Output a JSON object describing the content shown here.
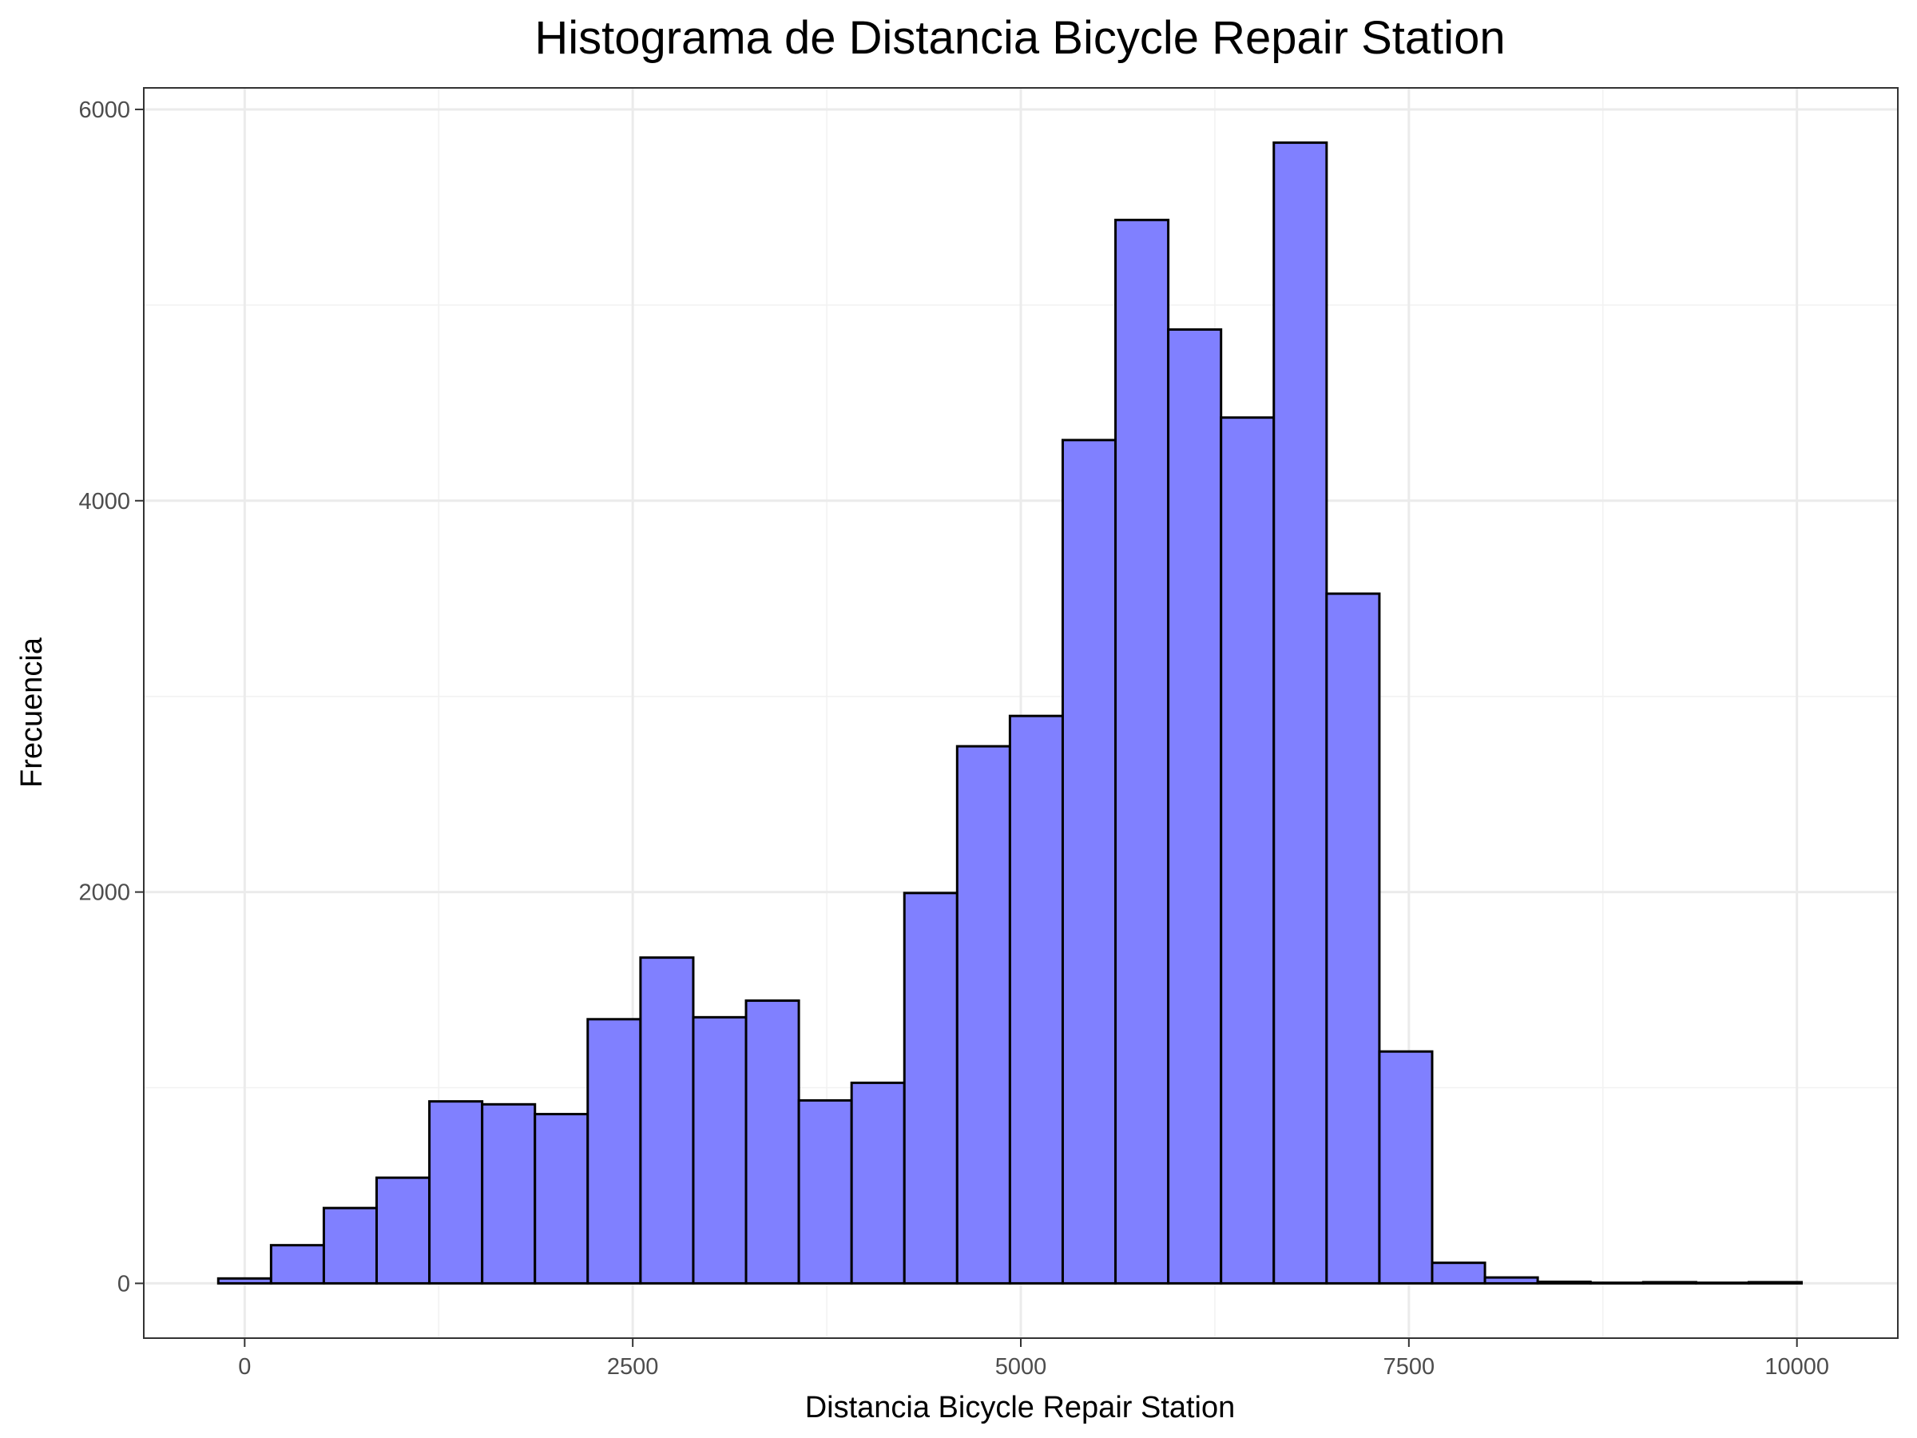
{
  "chart_data": {
    "type": "bar",
    "title": "Histograma de Distancia Bicycle Repair Station",
    "xlabel": "Distancia Bicycle Repair Station",
    "ylabel": "Frecuencia",
    "xlim": [
      -650,
      10650
    ],
    "ylim": [
      -280,
      6110
    ],
    "x_ticks": [
      0,
      2500,
      5000,
      7500,
      10000
    ],
    "x_tick_labels": [
      "0",
      "2500",
      "5000",
      "7500",
      "10000"
    ],
    "y_ticks": [
      0,
      2000,
      4000,
      6000
    ],
    "y_tick_labels": [
      "0",
      "2000",
      "4000",
      "6000"
    ],
    "grid": true,
    "bin_width": 340,
    "bin_starts": [
      -170,
      170,
      510,
      850,
      1190,
      1530,
      1870,
      2210,
      2550,
      2890,
      3230,
      3570,
      3910,
      4250,
      4590,
      4930,
      5270,
      5610,
      5950,
      6290,
      6630,
      6970,
      7310,
      7650,
      7990,
      8330,
      8670,
      9010,
      9350,
      9690
    ],
    "values": [
      25,
      195,
      385,
      540,
      930,
      915,
      865,
      1350,
      1665,
      1360,
      1445,
      935,
      1025,
      1995,
      2745,
      2900,
      4310,
      5435,
      4875,
      4425,
      5830,
      3525,
      1185,
      105,
      30,
      8,
      3,
      6,
      3,
      6
    ],
    "fill_color": "#8080ff",
    "edge_color": "#000000"
  }
}
